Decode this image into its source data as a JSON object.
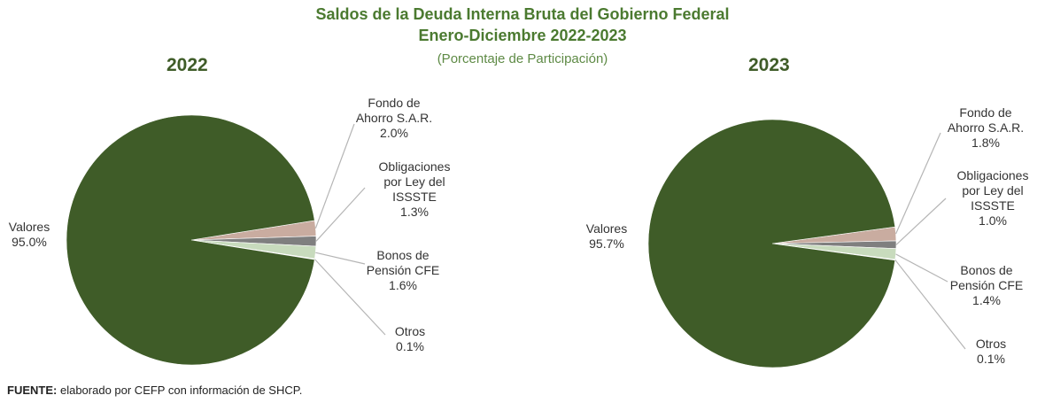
{
  "title": "Saldos de la Deuda Interna Bruta del Gobierno Federal",
  "subtitle": "Enero-Diciembre 2022-2023",
  "caption": "(Porcentaje de Participación)",
  "source_label": "FUENTE:",
  "source": "elaborado por CEFP con información de SHCP.",
  "chart_data": [
    {
      "type": "pie",
      "title": "2022",
      "categories": [
        "Fondo de Ahorro S.A.R.",
        "Obligaciones por Ley del ISSSTE",
        "Bonos de Pensión CFE",
        "Otros",
        "Valores"
      ],
      "values": [
        2.0,
        1.3,
        1.6,
        0.1,
        95.0
      ],
      "value_labels": [
        "2.0%",
        "1.3%",
        "1.6%",
        "0.1%",
        "95.0%"
      ],
      "colors": [
        "#c9aca0",
        "#7f7f7f",
        "#c8dbbd",
        "#eef2ea",
        "#3f5c28"
      ]
    },
    {
      "type": "pie",
      "title": "2023",
      "categories": [
        "Fondo de Ahorro S.A.R.",
        "Obligaciones por Ley del ISSSTE",
        "Bonos de Pensión CFE",
        "Otros",
        "Valores"
      ],
      "values": [
        1.8,
        1.0,
        1.4,
        0.1,
        95.7
      ],
      "value_labels": [
        "1.8%",
        "1.0%",
        "1.4%",
        "0.1%",
        "95.7%"
      ],
      "colors": [
        "#c9aca0",
        "#7f7f7f",
        "#c8dbbd",
        "#eef2ea",
        "#3f5c28"
      ]
    }
  ]
}
